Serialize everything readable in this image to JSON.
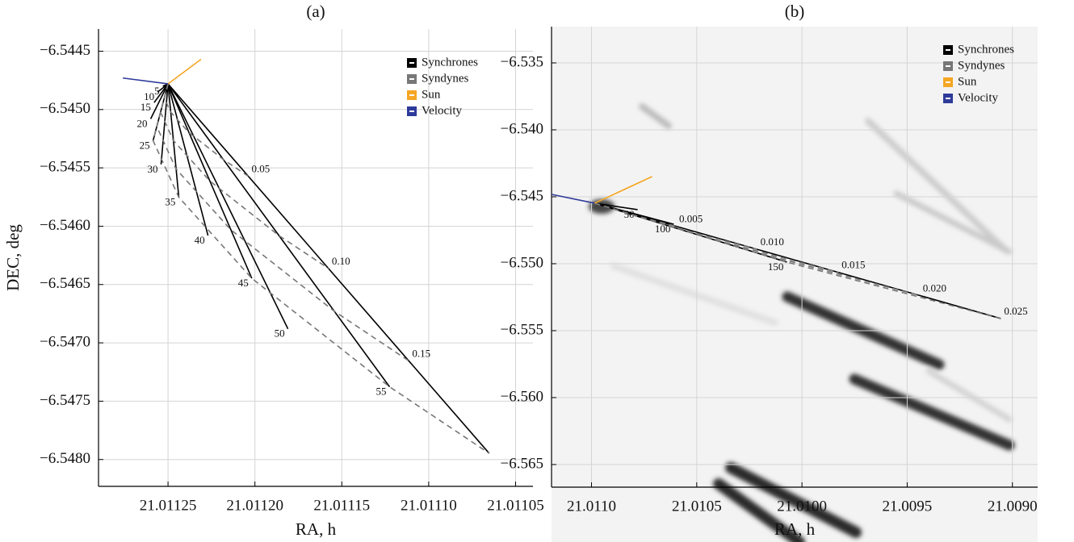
{
  "chart_data": [
    {
      "type": "line",
      "title": "(a)",
      "xlabel": "RA, h",
      "ylabel": "DEC, deg",
      "xlim": [
        21.01129,
        21.01104
      ],
      "ylim": [
        -6.54823,
        -6.54431
      ],
      "xticks": [
        21.01125,
        {
          "value": 21.0112,
          "label": "21.01120"
        },
        21.01115,
        {
          "value": 21.0111,
          "label": "21.01110"
        },
        21.01105
      ],
      "yticks": [
        {
          "value": -6.5445,
          "label": "−6.5445"
        },
        {
          "value": -6.545,
          "label": "−6.5450"
        },
        {
          "value": -6.5455,
          "label": "−6.5455"
        },
        {
          "value": -6.546,
          "label": "−6.5460"
        },
        {
          "value": -6.5465,
          "label": "−6.5465"
        },
        {
          "value": -6.547,
          "label": "−6.5470"
        },
        {
          "value": -6.5475,
          "label": "−6.5475"
        },
        {
          "value": -6.548,
          "label": "−6.5480"
        }
      ],
      "grid": true,
      "legend": "upper right",
      "series": [
        {
          "name": "Synchrones",
          "color": "#000000",
          "style": "solid",
          "lines": [
            {
              "label": "5",
              "x": [
                21.01125,
                21.011253
              ],
              "y": [
                -6.54478,
                -6.5448
              ]
            },
            {
              "label": "10",
              "x": [
                21.01125,
                21.011256
              ],
              "y": [
                -6.54478,
                -6.54485
              ]
            },
            {
              "label": "15",
              "x": [
                21.01125,
                21.011258
              ],
              "y": [
                -6.54478,
                -6.54494
              ]
            },
            {
              "label": "20",
              "x": [
                21.01125,
                21.01126
              ],
              "y": [
                -6.54478,
                -6.54508
              ]
            },
            {
              "label": "25",
              "x": [
                21.01125,
                21.0112586
              ],
              "y": [
                -6.54478,
                -6.545266
              ]
            },
            {
              "label": "30",
              "x": [
                21.01125,
                21.011254
              ],
              "y": [
                -6.54478,
                -6.54547
              ]
            },
            {
              "label": "35",
              "x": [
                21.01125,
                21.0112438
              ],
              "y": [
                -6.54478,
                -6.545752
              ]
            },
            {
              "label": "40",
              "x": [
                21.01125,
                21.011227
              ],
              "y": [
                -6.54478,
                -6.54608
              ]
            },
            {
              "label": "45",
              "x": [
                21.01125,
                21.0112018
              ],
              "y": [
                -6.54478,
                -6.546447
              ]
            },
            {
              "label": "50",
              "x": [
                21.01125,
                21.011181
              ],
              "y": [
                -6.54478,
                -6.54688
              ]
            },
            {
              "label": "55",
              "x": [
                21.01125,
                21.0111225
              ],
              "y": [
                -6.54478,
                -6.547377
              ]
            },
            {
              "x": [
                21.01125,
                21.0110652
              ],
              "y": [
                -6.54478,
                -6.547947
              ]
            }
          ]
        },
        {
          "name": "Syndynes",
          "color": "#777777",
          "style": "dashed",
          "lines": [
            {
              "label": "0.05",
              "x": [
                21.01125,
                21.0112522,
                21.0112484,
                21.011238,
                21.0112181,
                21.0112038
              ],
              "y": [
                -6.54478,
                -6.544902,
                -6.545023,
                -6.545197,
                -6.545429,
                -6.545572
              ]
            },
            {
              "label": "0.10",
              "x": [
                21.01125,
                21.0112543,
                21.0112469,
                21.0112259,
                21.0111863,
                21.0111576
              ],
              "y": [
                -6.54478,
                -6.545023,
                -6.545266,
                -6.545613,
                -6.546079,
                -6.546363
              ]
            },
            {
              "label": "0.15",
              "x": [
                21.01125,
                21.0112565,
                21.0112454,
                21.0112139,
                21.0111544,
                21.0111114
              ],
              "y": [
                -6.54478,
                -6.545145,
                -6.545509,
                -6.54603,
                -6.546728,
                -6.547155
              ]
            },
            {
              "x": [
                21.01125,
                21.0112586,
                21.0112438,
                21.0112018,
                21.0111225,
                21.0110652
              ],
              "y": [
                -6.54478,
                -6.545266,
                -6.545752,
                -6.546447,
                -6.547377,
                -6.547947
              ]
            }
          ]
        },
        {
          "name": "Sun",
          "color": "#f5a623",
          "style": "solid",
          "lines": [
            {
              "x": [
                21.01125,
                21.011231
              ],
              "y": [
                -6.54478,
                -6.544569
              ]
            }
          ]
        },
        {
          "name": "Velocity",
          "color": "#2e3a9a",
          "style": "solid",
          "lines": [
            {
              "x": [
                21.01125,
                21.011276
              ],
              "y": [
                -6.54478,
                -6.54473
              ]
            }
          ]
        }
      ]
    },
    {
      "type": "line",
      "title": "(b)",
      "xlabel": "RA, h",
      "xlim": [
        21.01119,
        21.00888
      ],
      "ylim": [
        -6.56669,
        -6.53229
      ],
      "xticks": [
        {
          "value": 21.011,
          "label": "21.0110"
        },
        21.0105,
        {
          "value": 21.01,
          "label": "21.0100"
        },
        21.0095,
        {
          "value": 21.009,
          "label": "21.0090"
        }
      ],
      "yticks": [
        {
          "value": -6.535,
          "label": "−6.535"
        },
        {
          "value": -6.54,
          "label": "−6.540"
        },
        {
          "value": -6.545,
          "label": "−6.545"
        },
        {
          "value": -6.55,
          "label": "−6.550"
        },
        {
          "value": -6.555,
          "label": "−6.555"
        },
        {
          "value": -6.56,
          "label": "−6.560"
        },
        {
          "value": -6.565,
          "label": "−6.565"
        }
      ],
      "grid": true,
      "legend": "upper right",
      "series": [
        {
          "name": "Synchrones",
          "color": "#000000",
          "style": "solid",
          "lines": [
            {
              "label": "50",
              "x": [
                21.010985,
                21.010781
              ],
              "y": [
                -6.54548,
                -6.54596
              ]
            },
            {
              "label": "100",
              "x": [
                21.010985,
                21.010609
              ],
              "y": [
                -6.54548,
                -6.54705
              ]
            },
            {
              "label": "150",
              "x": [
                21.010985,
                21.010072
              ],
              "y": [
                -6.54548,
                -6.549878
              ]
            },
            {
              "x": [
                21.010985,
                21.009055
              ],
              "y": [
                -6.54548,
                -6.554094
              ]
            }
          ]
        },
        {
          "name": "Syndynes",
          "color": "#777777",
          "style": "dashed",
          "lines": [
            {
              "label": "0.005",
              "x": [
                21.010985,
                21.010802,
                21.010599
              ],
              "y": [
                -6.54548,
                -6.54636,
                -6.547203
              ]
            },
            {
              "label": "0.010",
              "x": [
                21.010985,
                21.01062,
                21.010213
              ],
              "y": [
                -6.54548,
                -6.547239,
                -6.548926
              ]
            },
            {
              "label": "0.015",
              "x": [
                21.010985,
                21.010437,
                21.009827
              ],
              "y": [
                -6.54548,
                -6.548119,
                -6.550649
              ]
            },
            {
              "label": "0.020",
              "x": [
                21.010985,
                21.010254,
                21.009441
              ],
              "y": [
                -6.54548,
                -6.548998,
                -6.552371
              ]
            },
            {
              "label": "0.025",
              "x": [
                21.010985,
                21.010072,
                21.009055
              ],
              "y": [
                -6.54548,
                -6.549878,
                -6.554094
              ]
            }
          ]
        },
        {
          "name": "Sun",
          "color": "#f5a623",
          "style": "solid",
          "lines": [
            {
              "x": [
                21.010985,
                21.010712
              ],
              "y": [
                -6.54548,
                -6.54349
              ]
            }
          ]
        },
        {
          "name": "Velocity",
          "color": "#2e3a9a",
          "style": "solid",
          "lines": [
            {
              "x": [
                21.010985,
                21.01119
              ],
              "y": [
                -6.54548,
                -6.54482
              ]
            }
          ]
        }
      ]
    }
  ]
}
